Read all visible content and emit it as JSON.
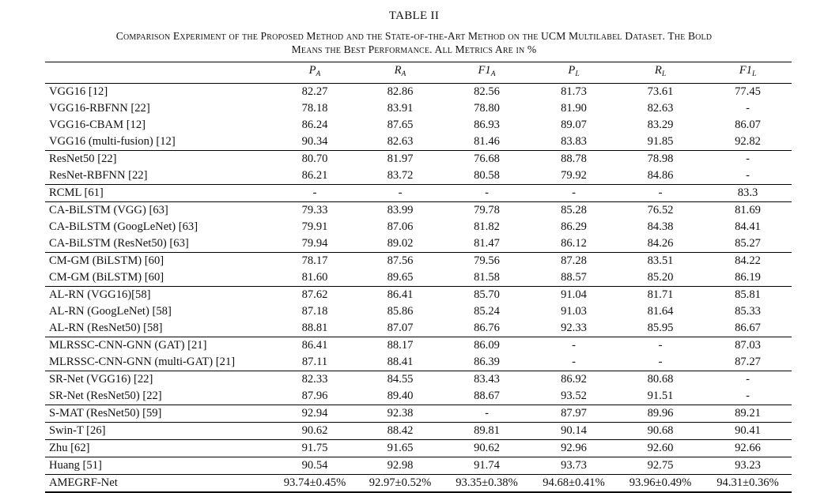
{
  "table_number": "TABLE II",
  "caption_line1": "Comparison Experiment of the Proposed Method and the State-of-the-Art Method on the UCM Multilabel Dataset. The Bold",
  "caption_line2": "Means the Best Performance. All Metrics Are in %",
  "columns": [
    {
      "base": "P",
      "sub": "A"
    },
    {
      "base": "R",
      "sub": "A"
    },
    {
      "base": "F1",
      "sub": "A"
    },
    {
      "base": "P",
      "sub": "L"
    },
    {
      "base": "R",
      "sub": "L"
    },
    {
      "base": "F1",
      "sub": "L"
    }
  ],
  "rows": [
    {
      "method": "VGG16 [12]",
      "values": [
        "82.27",
        "82.86",
        "82.56",
        "81.73",
        "73.61",
        "77.45"
      ],
      "group_start": true
    },
    {
      "method": "VGG16-RBFNN [22]",
      "values": [
        "78.18",
        "83.91",
        "78.80",
        "81.90",
        "82.63",
        "-"
      ]
    },
    {
      "method": "VGG16-CBAM [12]",
      "values": [
        "86.24",
        "87.65",
        "86.93",
        "89.07",
        "83.29",
        "86.07"
      ]
    },
    {
      "method": "VGG16 (multi-fusion) [12]",
      "values": [
        "90.34",
        "82.63",
        "81.46",
        "83.83",
        "91.85",
        "92.82"
      ]
    },
    {
      "method": "ResNet50 [22]",
      "values": [
        "80.70",
        "81.97",
        "76.68",
        "88.78",
        "78.98",
        "-"
      ],
      "group_start": true
    },
    {
      "method": "ResNet-RBFNN [22]",
      "values": [
        "86.21",
        "83.72",
        "80.58",
        "79.92",
        "84.86",
        "-"
      ]
    },
    {
      "method": "RCML [61]",
      "values": [
        "-",
        "-",
        "-",
        "-",
        "-",
        "83.3"
      ],
      "group_start": true
    },
    {
      "method": "CA-BiLSTM (VGG) [63]",
      "values": [
        "79.33",
        "83.99",
        "79.78",
        "85.28",
        "76.52",
        "81.69"
      ],
      "group_start": true
    },
    {
      "method": "CA-BiLSTM (GoogLeNet) [63]",
      "values": [
        "79.91",
        "87.06",
        "81.82",
        "86.29",
        "84.38",
        "84.41"
      ]
    },
    {
      "method": "CA-BiLSTM (ResNet50) [63]",
      "values": [
        "79.94",
        "89.02",
        "81.47",
        "86.12",
        "84.26",
        "85.27"
      ]
    },
    {
      "method": "CM-GM (BiLSTM) [60]",
      "values": [
        "78.17",
        "87.56",
        "79.56",
        "87.28",
        "83.51",
        "84.22"
      ],
      "group_start": true
    },
    {
      "method": "CM-GM (BiLSTM) [60]",
      "values": [
        "81.60",
        "89.65",
        "81.58",
        "88.57",
        "85.20",
        "86.19"
      ]
    },
    {
      "method": "AL-RN (VGG16)[58]",
      "values": [
        "87.62",
        "86.41",
        "85.70",
        "91.04",
        "81.71",
        "85.81"
      ],
      "group_start": true
    },
    {
      "method": "AL-RN (GoogLeNet) [58]",
      "values": [
        "87.18",
        "85.86",
        "85.24",
        "91.03",
        "81.64",
        "85.33"
      ]
    },
    {
      "method": "AL-RN (ResNet50) [58]",
      "values": [
        "88.81",
        "87.07",
        "86.76",
        "92.33",
        "85.95",
        "86.67"
      ]
    },
    {
      "method": "MLRSSC-CNN-GNN (GAT) [21]",
      "values": [
        "86.41",
        "88.17",
        "86.09",
        "-",
        "-",
        "87.03"
      ],
      "group_start": true
    },
    {
      "method": "MLRSSC-CNN-GNN (multi-GAT) [21]",
      "values": [
        "87.11",
        "88.41",
        "86.39",
        "-",
        "-",
        "87.27"
      ]
    },
    {
      "method": "SR-Net (VGG16) [22]",
      "values": [
        "82.33",
        "84.55",
        "83.43",
        "86.92",
        "80.68",
        "-"
      ],
      "group_start": true
    },
    {
      "method": "SR-Net (ResNet50) [22]",
      "values": [
        "87.96",
        "89.40",
        "88.67",
        "93.52",
        "91.51",
        "-"
      ]
    },
    {
      "method": "S-MAT (ResNet50) [59]",
      "values": [
        "92.94",
        "92.38",
        "-",
        "87.97",
        "89.96",
        "89.21"
      ],
      "group_start": true
    },
    {
      "method": "Swin-T [26]",
      "values": [
        "90.62",
        "88.42",
        "89.81",
        "90.14",
        "90.68",
        "90.41"
      ],
      "group_start": true
    },
    {
      "method": "Zhu [62]",
      "values": [
        "91.75",
        "91.65",
        "90.62",
        "92.96",
        "92.60",
        "92.66"
      ],
      "group_start": true
    },
    {
      "method": "Huang [51]",
      "values": [
        "90.54",
        "92.98",
        "91.74",
        "93.73",
        "92.75",
        "93.23"
      ],
      "bold": [
        1
      ],
      "group_start": true
    },
    {
      "method": "AMEGRF-Net",
      "values": [
        "93.74±0.45%",
        "92.97±0.52%",
        "93.35±0.38%",
        "94.68±0.41%",
        "93.96±0.49%",
        "94.31±0.36%"
      ],
      "bold": [
        0,
        2,
        3,
        4,
        5
      ],
      "group_start": true
    }
  ]
}
